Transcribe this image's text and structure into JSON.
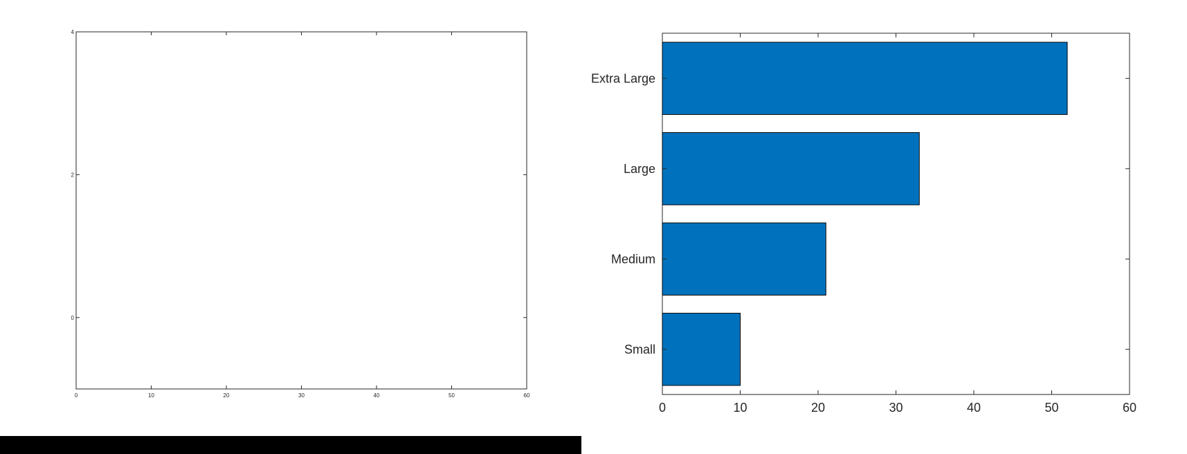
{
  "chart_data": [
    {
      "type": "line",
      "title": "",
      "xlabel": "",
      "ylabel": "",
      "series": [],
      "xlim": [
        0,
        60
      ],
      "ylim": [
        -1,
        4
      ],
      "xticks": [
        0,
        10,
        20,
        30,
        40,
        50,
        60
      ],
      "yticks": [
        0,
        2,
        4
      ],
      "grid": false
    },
    {
      "type": "bar",
      "orientation": "horizontal",
      "title": "",
      "xlabel": "",
      "ylabel": "",
      "categories": [
        "Small",
        "Medium",
        "Large",
        "Extra Large"
      ],
      "values": [
        10,
        21,
        33,
        52
      ],
      "xlim": [
        0,
        60
      ],
      "xticks": [
        0,
        10,
        20,
        30,
        40,
        50,
        60
      ],
      "bar_color": "#0072BD",
      "edge_color": "#000000",
      "grid": false
    }
  ]
}
